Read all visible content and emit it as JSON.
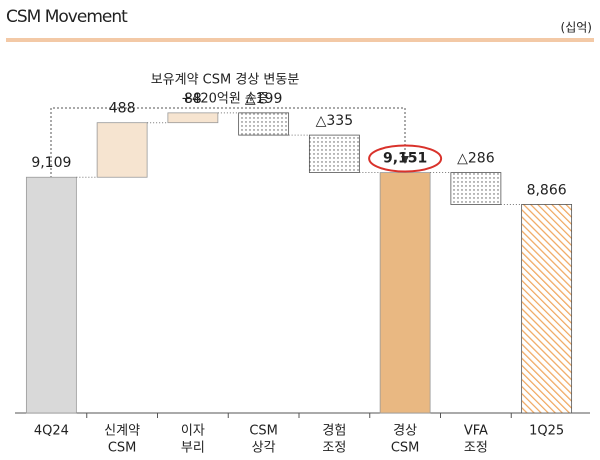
{
  "chart_data": {
    "type": "waterfall",
    "title": "CSM Movement",
    "unit": "(십억)",
    "annotation": [
      "보유계약 CSM 경상 변동분",
      "+420억원 순증"
    ],
    "categories": [
      [
        "4Q24"
      ],
      [
        "신계약",
        "CSM"
      ],
      [
        "이자",
        "부리"
      ],
      [
        "CSM",
        "상각"
      ],
      [
        "경험",
        "조정"
      ],
      [
        "경상",
        "CSM"
      ],
      [
        "VFA",
        "조정"
      ],
      [
        "1Q25"
      ]
    ],
    "values": [
      9109,
      488,
      88,
      -199,
      -335,
      9151,
      -286,
      8866
    ],
    "value_labels": [
      "9,109",
      "488",
      "88",
      "△199",
      "△335",
      "9,151",
      "△286",
      "8,866"
    ],
    "is_total": [
      true,
      false,
      false,
      false,
      false,
      true,
      false,
      true
    ],
    "colors": [
      "#d9d9d9",
      "#f6e4d0",
      "#f6e4d0",
      "#ffffff",
      "#ffffff",
      "#e9b882",
      "#ffffff",
      "#f2a860"
    ],
    "patterns": [
      "solid",
      "solid",
      "solid",
      "dots",
      "dots",
      "solid",
      "dots",
      "hatch"
    ],
    "highlight": 5,
    "ylim": [
      7000,
      9800
    ]
  }
}
